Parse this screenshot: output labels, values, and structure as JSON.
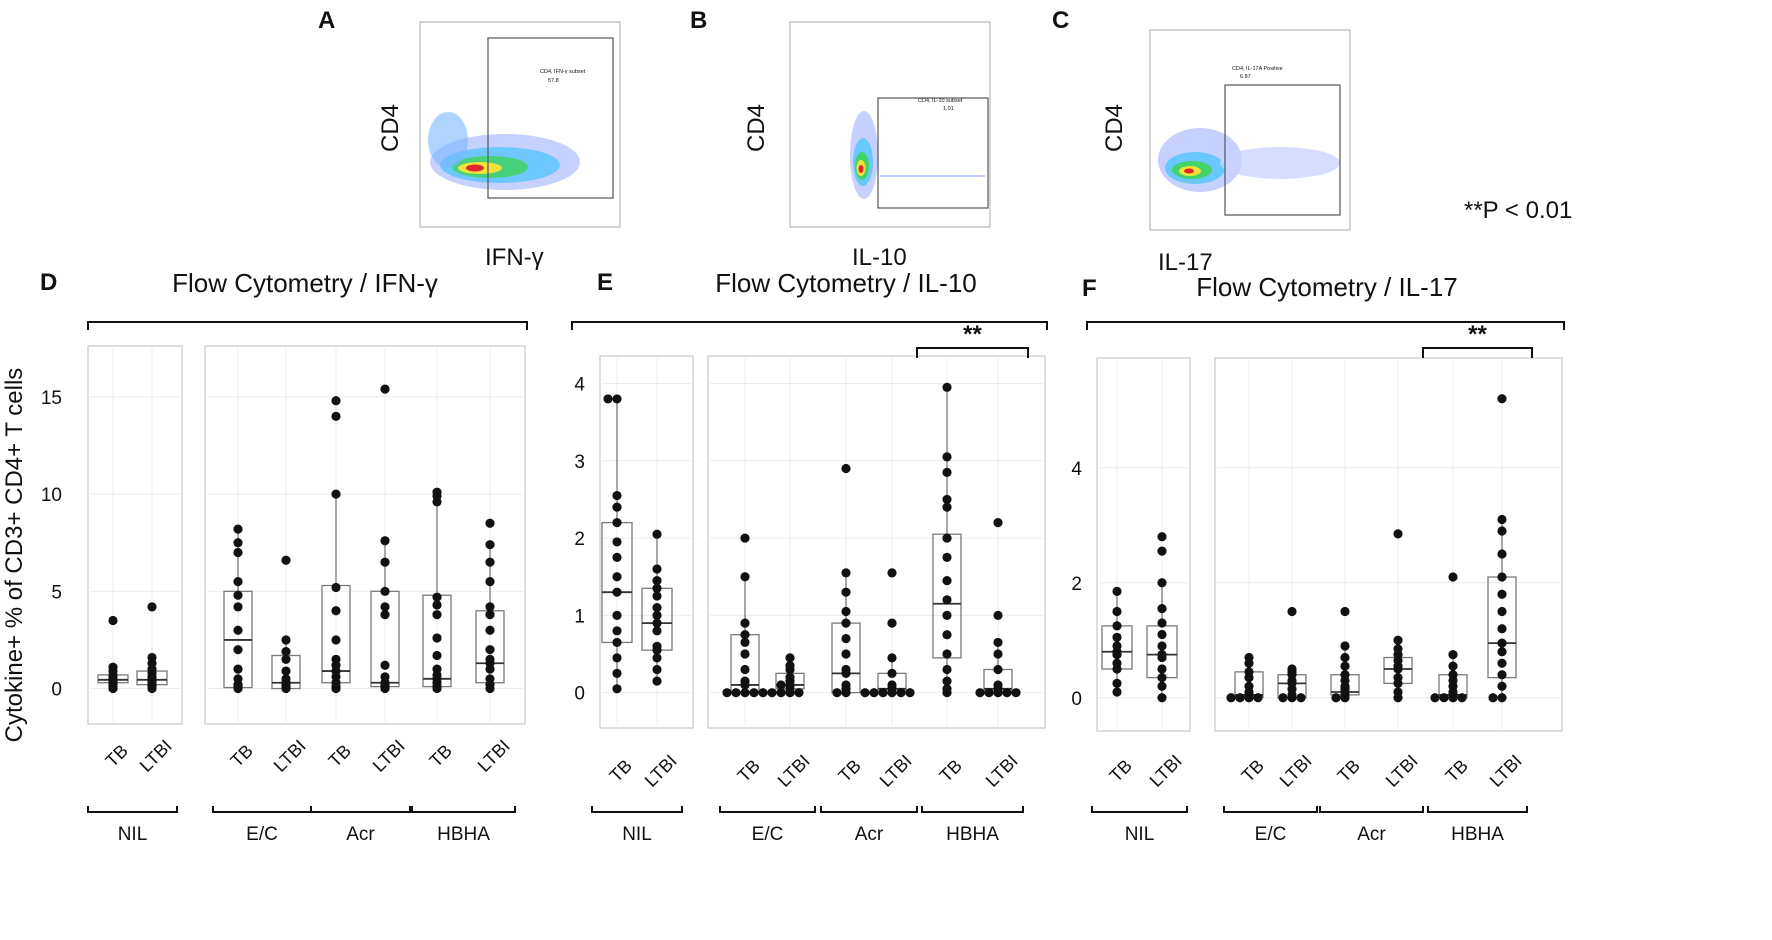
{
  "figure": {
    "pvalue_note": "**P < 0.01",
    "ylabel": "Cytokine+  % of CD3+ CD4+ T cells"
  },
  "flow_panels": [
    {
      "letter": "A",
      "ylabel": "CD4",
      "xlabel": "IFN-γ",
      "gate_label": "CD4, IFN-γ subset",
      "gate_value": "57.8"
    },
    {
      "letter": "B",
      "ylabel": "CD4",
      "xlabel": "IL-10",
      "gate_label": "CD4, IL-10 subset",
      "gate_value": "1.01"
    },
    {
      "letter": "C",
      "ylabel": "CD4",
      "xlabel": "IL-17",
      "gate_label": "CD4, IL-17A Positive",
      "gate_value": "6.87"
    }
  ],
  "chart_data": [
    {
      "type": "box",
      "letter": "D",
      "title": "Flow Cytometry / IFN-γ",
      "ylabel": "Cytokine+  % of CD3+ CD4+ T cells",
      "ylim": [
        -1,
        17
      ],
      "yticks": [
        0,
        5,
        10,
        15
      ],
      "categories": [
        "TB",
        "LTBI",
        "TB",
        "LTBI",
        "TB",
        "LTBI",
        "TB",
        "LTBI"
      ],
      "groups": [
        {
          "name": "NIL",
          "start": 0,
          "end": 1
        },
        {
          "name": "E/C",
          "start": 2,
          "end": 3
        },
        {
          "name": "Acr",
          "start": 4,
          "end": 5
        },
        {
          "name": "HBHA",
          "start": 6,
          "end": 7
        }
      ],
      "significance": [],
      "series": [
        {
          "group": "NIL",
          "name": "TB",
          "q1": 0.3,
          "median": 0.45,
          "q3": 0.7,
          "whisker_low": 0.0,
          "whisker_high": 1.1,
          "points": [
            0.0,
            0.1,
            0.2,
            0.3,
            0.35,
            0.45,
            0.5,
            0.6,
            0.7,
            0.9,
            1.1,
            3.5
          ]
        },
        {
          "group": "NIL",
          "name": "LTBI",
          "q1": 0.2,
          "median": 0.45,
          "q3": 0.9,
          "whisker_low": 0.0,
          "whisker_high": 1.6,
          "points": [
            0.0,
            0.1,
            0.2,
            0.3,
            0.4,
            0.5,
            0.6,
            0.8,
            1.0,
            1.3,
            1.6,
            4.2
          ]
        },
        {
          "group": "E/C",
          "name": "TB",
          "q1": 0.05,
          "median": 2.5,
          "q3": 5.0,
          "whisker_low": 0.0,
          "whisker_high": 8.2,
          "points": [
            0.0,
            0.1,
            0.2,
            0.5,
            1.0,
            2.0,
            3.0,
            4.2,
            4.8,
            5.5,
            7.0,
            7.5,
            8.2
          ]
        },
        {
          "group": "E/C",
          "name": "LTBI",
          "q1": 0.0,
          "median": 0.3,
          "q3": 1.7,
          "whisker_low": 0.0,
          "whisker_high": 2.5,
          "points": [
            0.0,
            0.1,
            0.2,
            0.3,
            0.5,
            0.9,
            1.5,
            1.9,
            2.5,
            6.6
          ]
        },
        {
          "group": "Acr",
          "name": "TB",
          "q1": 0.3,
          "median": 0.9,
          "q3": 5.3,
          "whisker_low": 0.0,
          "whisker_high": 10.0,
          "points": [
            0.0,
            0.1,
            0.3,
            0.6,
            0.9,
            1.2,
            1.5,
            2.5,
            4.0,
            5.2,
            10.0,
            14.0,
            14.8
          ]
        },
        {
          "group": "Acr",
          "name": "LTBI",
          "q1": 0.1,
          "median": 0.3,
          "q3": 5.0,
          "whisker_low": 0.0,
          "whisker_high": 7.6,
          "points": [
            0.0,
            0.1,
            0.2,
            0.3,
            0.6,
            1.2,
            3.8,
            4.2,
            5.0,
            6.5,
            7.6,
            15.4
          ]
        },
        {
          "group": "HBHA",
          "name": "TB",
          "q1": 0.1,
          "median": 0.5,
          "q3": 4.8,
          "whisker_low": 0.0,
          "whisker_high": 10.1,
          "points": [
            0.0,
            0.1,
            0.3,
            0.5,
            0.7,
            1.0,
            1.7,
            2.6,
            3.8,
            4.3,
            4.7,
            9.6,
            9.9,
            10.1
          ]
        },
        {
          "group": "HBHA",
          "name": "LTBI",
          "q1": 0.3,
          "median": 1.3,
          "q3": 4.0,
          "whisker_low": 0.0,
          "whisker_high": 7.4,
          "points": [
            0.0,
            0.2,
            0.5,
            1.0,
            1.3,
            1.5,
            2.0,
            3.0,
            3.8,
            4.2,
            5.5,
            6.5,
            7.4,
            8.5
          ]
        }
      ]
    },
    {
      "type": "box",
      "letter": "E",
      "title": "Flow Cytometry / IL-10",
      "ylabel": "",
      "ylim": [
        -0.25,
        4.2
      ],
      "yticks": [
        0,
        1,
        2,
        3,
        4
      ],
      "categories": [
        "TB",
        "LTBI",
        "TB",
        "LTBI",
        "TB",
        "LTBI",
        "TB",
        "LTBI"
      ],
      "groups": [
        {
          "name": "NIL",
          "start": 0,
          "end": 1
        },
        {
          "name": "E/C",
          "start": 2,
          "end": 3
        },
        {
          "name": "Acr",
          "start": 4,
          "end": 5
        },
        {
          "name": "HBHA",
          "start": 6,
          "end": 7
        }
      ],
      "significance": [
        {
          "from": 6,
          "to": 7,
          "label": "**"
        }
      ],
      "series": [
        {
          "group": "NIL",
          "name": "TB",
          "q1": 0.65,
          "median": 1.3,
          "q3": 2.2,
          "whisker_low": 0.05,
          "whisker_high": 3.8,
          "points": [
            0.05,
            0.25,
            0.45,
            0.65,
            0.8,
            1.0,
            1.3,
            1.5,
            1.75,
            1.95,
            2.2,
            2.4,
            2.55,
            3.8,
            3.8
          ]
        },
        {
          "group": "NIL",
          "name": "LTBI",
          "q1": 0.55,
          "median": 0.9,
          "q3": 1.35,
          "whisker_low": 0.15,
          "whisker_high": 2.05,
          "points": [
            0.15,
            0.3,
            0.45,
            0.55,
            0.6,
            0.8,
            0.9,
            1.0,
            1.1,
            1.25,
            1.35,
            1.45,
            1.6,
            2.05
          ]
        },
        {
          "group": "E/C",
          "name": "TB",
          "q1": 0.0,
          "median": 0.1,
          "q3": 0.75,
          "whisker_low": 0.0,
          "whisker_high": 1.5,
          "points": [
            0.0,
            0.0,
            0.0,
            0.0,
            0.0,
            0.1,
            0.15,
            0.3,
            0.5,
            0.65,
            0.75,
            0.9,
            1.5,
            2.0
          ]
        },
        {
          "group": "E/C",
          "name": "LTBI",
          "q1": 0.05,
          "median": 0.1,
          "q3": 0.25,
          "whisker_low": 0.0,
          "whisker_high": 0.45,
          "points": [
            0.0,
            0.0,
            0.0,
            0.0,
            0.05,
            0.1,
            0.1,
            0.15,
            0.2,
            0.3,
            0.35,
            0.45
          ]
        },
        {
          "group": "Acr",
          "name": "TB",
          "q1": 0.0,
          "median": 0.25,
          "q3": 0.9,
          "whisker_low": 0.0,
          "whisker_high": 1.5,
          "points": [
            0.0,
            0.0,
            0.05,
            0.1,
            0.25,
            0.3,
            0.5,
            0.7,
            0.9,
            1.05,
            1.3,
            1.55,
            2.9
          ]
        },
        {
          "group": "Acr",
          "name": "LTBI",
          "q1": 0.0,
          "median": 0.05,
          "q3": 0.25,
          "whisker_low": 0.0,
          "whisker_high": 0.45,
          "points": [
            0.0,
            0.0,
            0.0,
            0.0,
            0.0,
            0.0,
            0.05,
            0.1,
            0.25,
            0.45,
            0.9,
            1.55
          ]
        },
        {
          "group": "HBHA",
          "name": "TB",
          "q1": 0.45,
          "median": 1.15,
          "q3": 2.05,
          "whisker_low": 0.0,
          "whisker_high": 3.95,
          "points": [
            0.0,
            0.05,
            0.15,
            0.3,
            0.5,
            0.75,
            1.0,
            1.2,
            1.45,
            1.75,
            2.0,
            2.4,
            2.5,
            2.85,
            3.05,
            3.95
          ]
        },
        {
          "group": "HBHA",
          "name": "LTBI",
          "q1": 0.0,
          "median": 0.05,
          "q3": 0.3,
          "whisker_low": 0.0,
          "whisker_high": 0.65,
          "points": [
            0.0,
            0.0,
            0.0,
            0.0,
            0.0,
            0.05,
            0.1,
            0.3,
            0.5,
            0.65,
            1.0,
            2.2
          ]
        }
      ]
    },
    {
      "type": "box",
      "letter": "F",
      "title": "Flow Cytometry / IL-17",
      "ylabel": "",
      "ylim": [
        -0.3,
        5.7
      ],
      "yticks": [
        0,
        2,
        4
      ],
      "categories": [
        "TB",
        "LTBI",
        "TB",
        "LTBI",
        "TB",
        "LTBI",
        "TB",
        "LTBI"
      ],
      "groups": [
        {
          "name": "NIL",
          "start": 0,
          "end": 1
        },
        {
          "name": "E/C",
          "start": 2,
          "end": 3
        },
        {
          "name": "Acr",
          "start": 4,
          "end": 5
        },
        {
          "name": "HBHA",
          "start": 6,
          "end": 7
        }
      ],
      "significance": [
        {
          "from": 6,
          "to": 7,
          "label": "**"
        }
      ],
      "series": [
        {
          "group": "NIL",
          "name": "TB",
          "q1": 0.5,
          "median": 0.8,
          "q3": 1.25,
          "whisker_low": 0.1,
          "whisker_high": 1.85,
          "points": [
            0.1,
            0.25,
            0.5,
            0.6,
            0.75,
            0.8,
            0.9,
            1.05,
            1.25,
            1.5,
            1.85
          ]
        },
        {
          "group": "NIL",
          "name": "LTBI",
          "q1": 0.35,
          "median": 0.75,
          "q3": 1.25,
          "whisker_low": 0.0,
          "whisker_high": 2.0,
          "points": [
            0.0,
            0.2,
            0.35,
            0.5,
            0.7,
            0.75,
            0.9,
            1.1,
            1.3,
            1.55,
            2.0,
            2.55,
            2.8
          ]
        },
        {
          "group": "E/C",
          "name": "TB",
          "q1": 0.0,
          "median": 0.05,
          "q3": 0.45,
          "whisker_low": 0.0,
          "whisker_high": 0.7,
          "points": [
            0.0,
            0.0,
            0.0,
            0.0,
            0.05,
            0.1,
            0.2,
            0.35,
            0.45,
            0.6,
            0.7
          ]
        },
        {
          "group": "E/C",
          "name": "LTBI",
          "q1": 0.0,
          "median": 0.25,
          "q3": 0.4,
          "whisker_low": 0.0,
          "whisker_high": 0.5,
          "points": [
            0.0,
            0.0,
            0.0,
            0.05,
            0.15,
            0.25,
            0.3,
            0.4,
            0.45,
            0.5,
            1.5
          ]
        },
        {
          "group": "Acr",
          "name": "TB",
          "q1": 0.05,
          "median": 0.1,
          "q3": 0.4,
          "whisker_low": 0.0,
          "whisker_high": 0.9,
          "points": [
            0.0,
            0.0,
            0.05,
            0.1,
            0.15,
            0.2,
            0.3,
            0.4,
            0.55,
            0.7,
            0.9,
            1.5
          ]
        },
        {
          "group": "Acr",
          "name": "LTBI",
          "q1": 0.25,
          "median": 0.5,
          "q3": 0.7,
          "whisker_low": 0.0,
          "whisker_high": 1.0,
          "points": [
            0.0,
            0.1,
            0.25,
            0.35,
            0.5,
            0.55,
            0.65,
            0.75,
            0.85,
            1.0,
            2.85
          ]
        },
        {
          "group": "HBHA",
          "name": "TB",
          "q1": 0.0,
          "median": 0.05,
          "q3": 0.4,
          "whisker_low": 0.0,
          "whisker_high": 0.75,
          "points": [
            0.0,
            0.0,
            0.0,
            0.0,
            0.05,
            0.1,
            0.2,
            0.3,
            0.4,
            0.55,
            0.75,
            2.1
          ]
        },
        {
          "group": "HBHA",
          "name": "LTBI",
          "q1": 0.35,
          "median": 0.95,
          "q3": 2.1,
          "whisker_low": 0.0,
          "whisker_high": 3.1,
          "points": [
            0.0,
            0.0,
            0.2,
            0.4,
            0.6,
            0.8,
            0.95,
            1.2,
            1.5,
            1.8,
            2.1,
            2.5,
            2.9,
            3.1,
            5.2
          ]
        }
      ]
    }
  ]
}
